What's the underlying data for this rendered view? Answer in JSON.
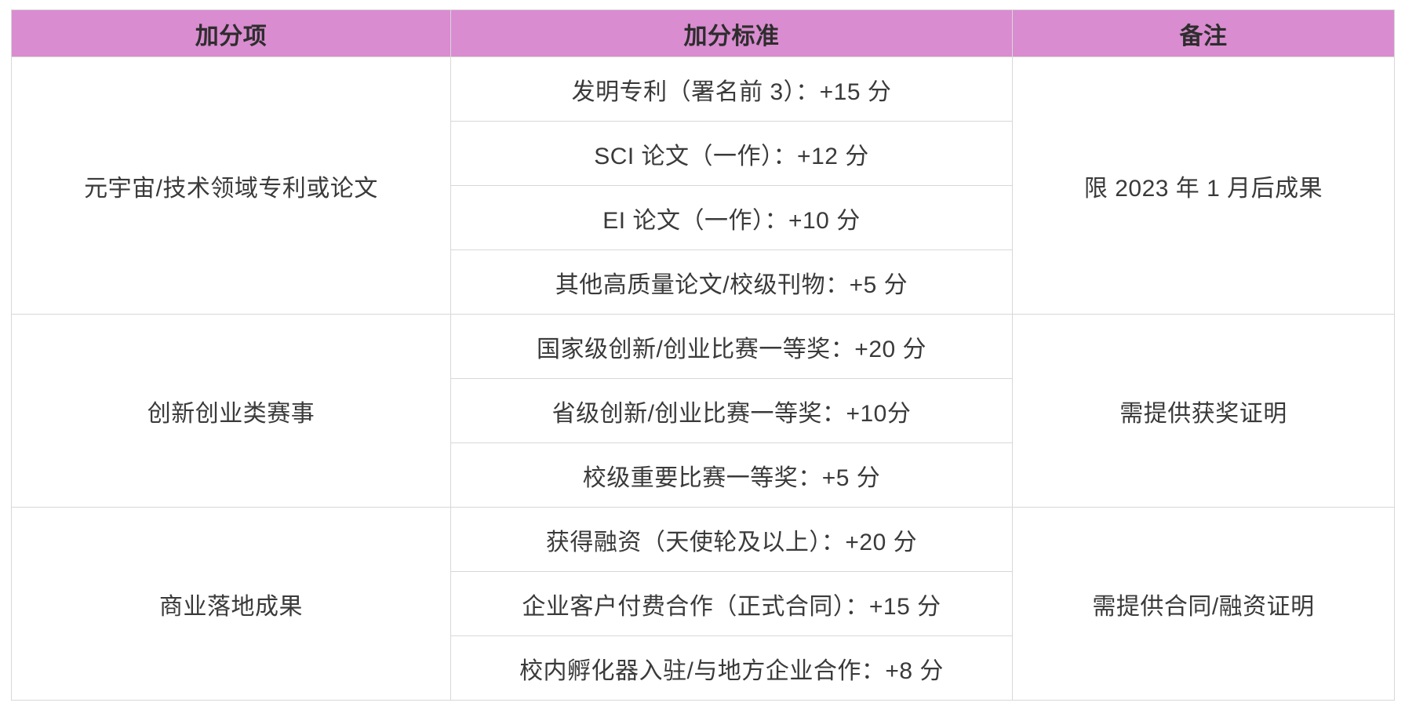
{
  "colors": {
    "header_bg": "#d98cd0",
    "border": "#d8d8d8",
    "text": "#3a3a3a",
    "header_text": "#2d2d2d",
    "page_bg": "#ffffff"
  },
  "table": {
    "headers": [
      "加分项",
      "加分标准",
      "备注"
    ],
    "groups": [
      {
        "item": "元宇宙/技术领域专利或论文",
        "criteria": [
          "发明专利（署名前 3）：+15 分",
          "SCI 论文（一作）：+12 分",
          "EI 论文（一作）：+10 分",
          "其他高质量论文/校级刊物：+5 分"
        ],
        "note": "限 2023 年 1 月后成果"
      },
      {
        "item": "创新创业类赛事",
        "criteria": [
          "国家级创新/创业比赛一等奖：+20 分",
          "省级创新/创业比赛一等奖：+10分",
          "校级重要比赛一等奖：+5 分"
        ],
        "note": "需提供获奖证明"
      },
      {
        "item": "商业落地成果",
        "criteria": [
          "获得融资（天使轮及以上）：+20 分",
          "企业客户付费合作（正式合同）：+15 分",
          "校内孵化器入驻/与地方企业合作：+8 分"
        ],
        "note": "需提供合同/融资证明"
      }
    ]
  }
}
